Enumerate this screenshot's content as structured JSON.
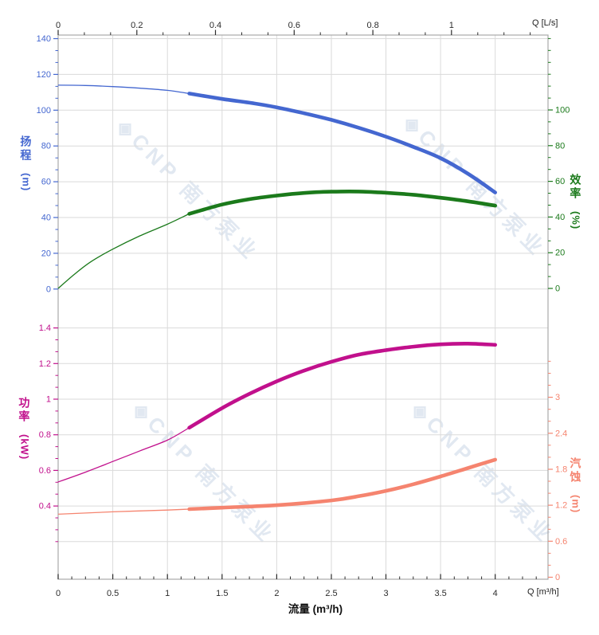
{
  "watermark": {
    "text": "CNP 南方泵业",
    "logo": "◈",
    "color": "#e1e8f1"
  },
  "chart_data": {
    "type": "line",
    "title": "",
    "legend": "none",
    "grid": true,
    "axes": {
      "x_bottom": {
        "title": "流量 (m³/h)",
        "unit_label": "Q [m³/h]",
        "tick_labels": [
          "0",
          "0.5",
          "1",
          "1.5",
          "2",
          "2.5",
          "3",
          "3.5",
          "4"
        ],
        "tick_values": [
          0,
          0.5,
          1,
          1.5,
          2,
          2.5,
          3,
          3.5,
          4
        ],
        "minor_step": 0.125,
        "range": [
          0,
          4.48
        ],
        "color": "#2b2b2b"
      },
      "x_top": {
        "unit_label": "Q [L/s]",
        "tick_labels": [
          "0",
          "0.2",
          "0.4",
          "0.6",
          "0.8",
          "1"
        ],
        "tick_values": [
          0,
          0.2,
          0.4,
          0.6,
          0.8,
          1
        ],
        "minor_step": 0.066667,
        "range": [
          0,
          1.245
        ],
        "color": "#2b2b2b"
      },
      "y_head": {
        "title": "扬程",
        "unit": "(m)",
        "tick_labels": [
          "0",
          "20",
          "40",
          "60",
          "80",
          "100",
          "120",
          "140"
        ],
        "tick_values": [
          0,
          20,
          40,
          60,
          80,
          100,
          120,
          140
        ],
        "gridline_values": [
          0,
          20,
          40,
          60,
          80,
          100,
          120,
          140
        ],
        "minor_step": 6.6667,
        "minor_max": 142,
        "range": [
          0,
          142
        ],
        "color": "#4467d0"
      },
      "y_eff": {
        "title": "效率",
        "unit": "(%)",
        "tick_labels": [
          "0",
          "20",
          "40",
          "60",
          "80",
          "100"
        ],
        "tick_values": [
          0,
          20,
          40,
          60,
          80,
          100
        ],
        "minor_step": 6.6667,
        "minor_max": 141,
        "range": [
          0,
          142
        ],
        "color": "#1b7a1b"
      },
      "y_power": {
        "title": "功率",
        "unit": "(kW)",
        "tick_labels": [
          "0.4",
          "0.6",
          "0.8",
          "1",
          "1.2",
          "1.4"
        ],
        "tick_values": [
          0.4,
          0.6,
          0.8,
          1,
          1.2,
          1.4
        ],
        "gridline_values": [
          0.2,
          0.4,
          0.6,
          0.8,
          1,
          1.2,
          1.4
        ],
        "minor_step": 0.066667,
        "minor_min": 0.2,
        "minor_max": 1.4,
        "range": [
          0,
          1.45
        ],
        "color": "#c1108c"
      },
      "y_npsh": {
        "title": "汽蚀",
        "unit": "(m)",
        "tick_labels": [
          "0",
          "0.6",
          "1.2",
          "1.8",
          "2.4",
          "3"
        ],
        "tick_values": [
          0,
          0.6,
          1.2,
          1.8,
          2.4,
          3
        ],
        "minor_step": 0.2,
        "minor_min": 0,
        "minor_max": 3.6,
        "range": [
          0,
          3.75
        ],
        "color": "#f5846f"
      }
    },
    "series": [
      {
        "name": "head",
        "label": "扬程 H(Q)",
        "axis": "head",
        "color": "#4467d0",
        "rated_from": 1.2,
        "points": [
          [
            0,
            114
          ],
          [
            0.25,
            113.8
          ],
          [
            0.5,
            113.2
          ],
          [
            0.75,
            112.3
          ],
          [
            1,
            111.1
          ],
          [
            1.2,
            109.3
          ],
          [
            1.5,
            106.3
          ],
          [
            1.75,
            104.2
          ],
          [
            2,
            101.6
          ],
          [
            2.25,
            98.3
          ],
          [
            2.5,
            94.6
          ],
          [
            2.75,
            90.2
          ],
          [
            3,
            85.2
          ],
          [
            3.25,
            79.5
          ],
          [
            3.5,
            73.2
          ],
          [
            3.75,
            64.5
          ],
          [
            4,
            54
          ]
        ]
      },
      {
        "name": "efficiency",
        "label": "效率 η(Q)",
        "axis": "eff",
        "color": "#1b7a1b",
        "rated_from": 1.2,
        "points": [
          [
            0,
            0
          ],
          [
            0.15,
            8
          ],
          [
            0.3,
            15
          ],
          [
            0.5,
            22
          ],
          [
            0.75,
            29.5
          ],
          [
            1,
            36
          ],
          [
            1.2,
            41.8
          ],
          [
            1.5,
            47
          ],
          [
            1.75,
            50
          ],
          [
            2,
            52
          ],
          [
            2.25,
            53.5
          ],
          [
            2.5,
            54.2
          ],
          [
            2.75,
            54.3
          ],
          [
            3,
            53.6
          ],
          [
            3.25,
            52.5
          ],
          [
            3.5,
            50.8
          ],
          [
            3.75,
            48.8
          ],
          [
            4,
            46.4
          ]
        ]
      },
      {
        "name": "power",
        "label": "功率 P(Q)",
        "axis": "power",
        "color": "#c1108c",
        "rated_from": 1.2,
        "points": [
          [
            0,
            0.535
          ],
          [
            0.25,
            0.59
          ],
          [
            0.5,
            0.65
          ],
          [
            0.75,
            0.71
          ],
          [
            1,
            0.77
          ],
          [
            1.2,
            0.84
          ],
          [
            1.5,
            0.95
          ],
          [
            1.75,
            1.03
          ],
          [
            2,
            1.1
          ],
          [
            2.25,
            1.16
          ],
          [
            2.5,
            1.21
          ],
          [
            2.75,
            1.25
          ],
          [
            3,
            1.275
          ],
          [
            3.25,
            1.295
          ],
          [
            3.5,
            1.308
          ],
          [
            3.75,
            1.312
          ],
          [
            4,
            1.305
          ]
        ]
      },
      {
        "name": "npsh",
        "label": "汽蚀 NPSH(Q)",
        "axis": "npsh",
        "color": "#f5846f",
        "rated_from": 1.2,
        "points": [
          [
            0,
            1.05
          ],
          [
            0.5,
            1.09
          ],
          [
            1,
            1.12
          ],
          [
            1.2,
            1.135
          ],
          [
            1.5,
            1.16
          ],
          [
            2,
            1.2
          ],
          [
            2.5,
            1.28
          ],
          [
            2.75,
            1.35
          ],
          [
            3,
            1.44
          ],
          [
            3.25,
            1.55
          ],
          [
            3.5,
            1.68
          ],
          [
            3.75,
            1.82
          ],
          [
            4,
            1.96
          ]
        ]
      }
    ]
  }
}
